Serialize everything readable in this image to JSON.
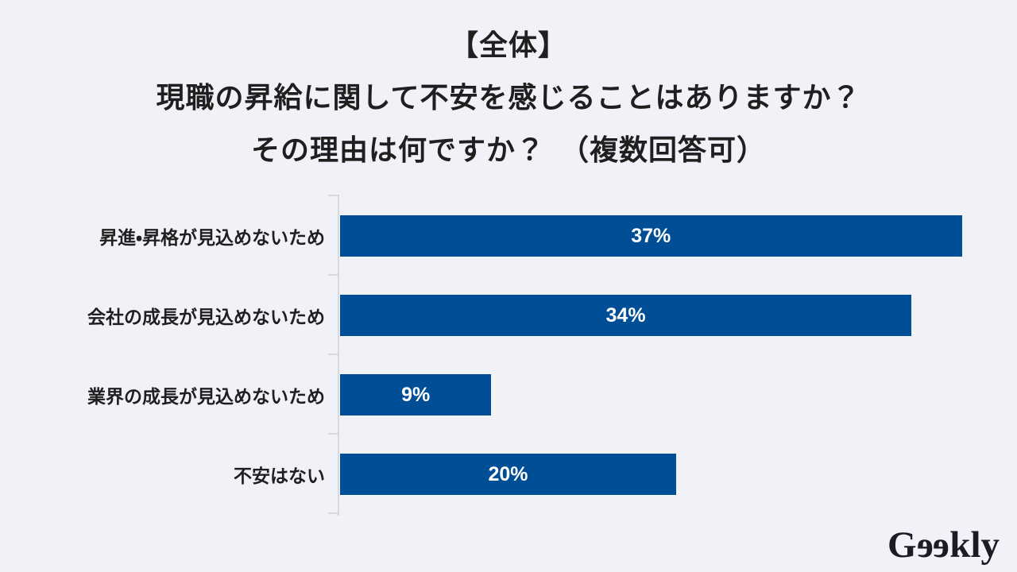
{
  "title": {
    "line1": "【全体】",
    "line2": "現職の昇給に関して不安を感じることはありますか？",
    "line3": "その理由は何ですか？　（複数回答可）"
  },
  "chart_data": {
    "type": "bar",
    "orientation": "horizontal",
    "title": "【全体】現職の昇給に関して不安を感じることはありますか？その理由は何ですか？（複数回答可）",
    "categories": [
      "昇進・昇格が見込めないため",
      "会社の成長が見込めないため",
      "業界の成長が見込めないため",
      "不安はない"
    ],
    "values": [
      37,
      34,
      9,
      20
    ],
    "value_labels": [
      "37%",
      "34%",
      "9%",
      "20%"
    ],
    "xlim": [
      0,
      40
    ],
    "grid": false,
    "legend": "none",
    "bar_color": "#004E96",
    "value_label_color": "#FFFFFF",
    "value_label_position": "center"
  },
  "logo": {
    "text": "Geekly",
    "color": "#1B1B26"
  },
  "colors": {
    "background": "#F0F2F7",
    "bar": "#004E96",
    "text": "#1F1F1F",
    "axis": "#D9D9D9"
  }
}
